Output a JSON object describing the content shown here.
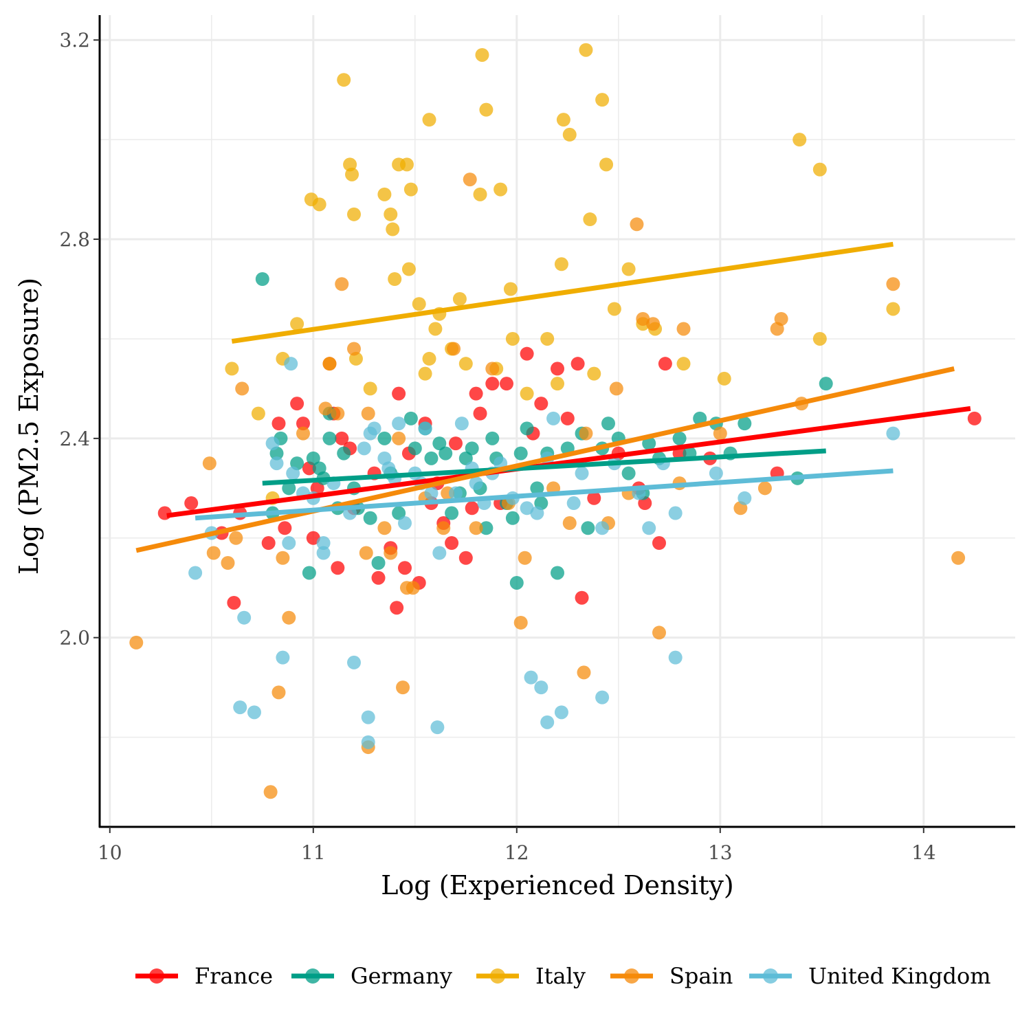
{
  "chart_data": {
    "type": "scatter",
    "title": "",
    "xlabel": "Log (Experienced Density)",
    "ylabel": "Log (PM2.5 Exposure)",
    "xlim": [
      9.95,
      14.45
    ],
    "ylim": [
      1.62,
      3.25
    ],
    "x_ticks": [
      10,
      11,
      12,
      13,
      14
    ],
    "y_ticks": [
      2.0,
      2.4,
      2.8,
      3.2
    ],
    "x_tick_labels": [
      "10",
      "11",
      "12",
      "13",
      "14"
    ],
    "y_tick_labels": [
      "2.0",
      "2.4",
      "2.8",
      "3.2"
    ],
    "grid": true,
    "legend_position": "bottom",
    "series": [
      {
        "name": "France",
        "color": "#ff0000",
        "fit": [
          [
            10.28,
            2.245
          ],
          [
            14.23,
            2.46
          ]
        ],
        "points": [
          [
            10.27,
            2.25
          ],
          [
            10.4,
            2.27
          ],
          [
            10.55,
            2.21
          ],
          [
            10.61,
            2.07
          ],
          [
            10.64,
            2.25
          ],
          [
            10.78,
            2.19
          ],
          [
            10.83,
            2.43
          ],
          [
            10.86,
            2.22
          ],
          [
            10.92,
            2.47
          ],
          [
            10.95,
            2.43
          ],
          [
            10.98,
            2.34
          ],
          [
            11.0,
            2.2
          ],
          [
            11.02,
            2.3
          ],
          [
            11.08,
            2.55
          ],
          [
            11.1,
            2.45
          ],
          [
            11.12,
            2.14
          ],
          [
            11.14,
            2.4
          ],
          [
            11.18,
            2.38
          ],
          [
            11.2,
            2.26
          ],
          [
            11.3,
            2.33
          ],
          [
            11.32,
            2.12
          ],
          [
            11.38,
            2.18
          ],
          [
            11.41,
            2.06
          ],
          [
            11.42,
            2.49
          ],
          [
            11.45,
            2.14
          ],
          [
            11.47,
            2.37
          ],
          [
            11.52,
            2.11
          ],
          [
            11.55,
            2.43
          ],
          [
            11.58,
            2.27
          ],
          [
            11.61,
            2.31
          ],
          [
            11.64,
            2.23
          ],
          [
            11.68,
            2.19
          ],
          [
            11.7,
            2.39
          ],
          [
            11.75,
            2.16
          ],
          [
            11.78,
            2.26
          ],
          [
            11.8,
            2.49
          ],
          [
            11.82,
            2.45
          ],
          [
            11.88,
            2.51
          ],
          [
            11.92,
            2.27
          ],
          [
            11.95,
            2.51
          ],
          [
            12.05,
            2.57
          ],
          [
            12.08,
            2.41
          ],
          [
            12.12,
            2.47
          ],
          [
            12.2,
            2.54
          ],
          [
            12.25,
            2.44
          ],
          [
            12.3,
            2.55
          ],
          [
            12.32,
            2.08
          ],
          [
            12.38,
            2.28
          ],
          [
            12.5,
            2.37
          ],
          [
            12.6,
            2.3
          ],
          [
            12.63,
            2.27
          ],
          [
            12.7,
            2.19
          ],
          [
            12.73,
            2.55
          ],
          [
            12.8,
            2.37
          ],
          [
            12.95,
            2.36
          ],
          [
            13.28,
            2.33
          ],
          [
            14.25,
            2.44
          ]
        ]
      },
      {
        "name": "Germany",
        "color": "#009e87",
        "fit": [
          [
            10.75,
            2.31
          ],
          [
            13.52,
            2.375
          ]
        ],
        "points": [
          [
            10.75,
            2.72
          ],
          [
            10.8,
            2.25
          ],
          [
            10.82,
            2.37
          ],
          [
            10.84,
            2.4
          ],
          [
            10.88,
            2.3
          ],
          [
            10.92,
            2.35
          ],
          [
            10.98,
            2.13
          ],
          [
            11.0,
            2.36
          ],
          [
            11.03,
            2.34
          ],
          [
            11.05,
            2.32
          ],
          [
            11.08,
            2.4
          ],
          [
            11.08,
            2.45
          ],
          [
            11.12,
            2.26
          ],
          [
            11.15,
            2.37
          ],
          [
            11.2,
            2.3
          ],
          [
            11.22,
            2.26
          ],
          [
            11.28,
            2.24
          ],
          [
            11.32,
            2.15
          ],
          [
            11.35,
            2.4
          ],
          [
            11.38,
            2.33
          ],
          [
            11.42,
            2.25
          ],
          [
            11.48,
            2.44
          ],
          [
            11.5,
            2.38
          ],
          [
            11.55,
            2.42
          ],
          [
            11.58,
            2.36
          ],
          [
            11.62,
            2.39
          ],
          [
            11.65,
            2.37
          ],
          [
            11.68,
            2.25
          ],
          [
            11.72,
            2.29
          ],
          [
            11.75,
            2.36
          ],
          [
            11.78,
            2.38
          ],
          [
            11.82,
            2.3
          ],
          [
            11.85,
            2.22
          ],
          [
            11.88,
            2.4
          ],
          [
            11.9,
            2.36
          ],
          [
            11.95,
            2.27
          ],
          [
            11.98,
            2.24
          ],
          [
            12.0,
            2.11
          ],
          [
            12.02,
            2.37
          ],
          [
            12.05,
            2.42
          ],
          [
            12.1,
            2.3
          ],
          [
            12.12,
            2.27
          ],
          [
            12.15,
            2.37
          ],
          [
            12.2,
            2.13
          ],
          [
            12.25,
            2.38
          ],
          [
            12.32,
            2.41
          ],
          [
            12.35,
            2.22
          ],
          [
            12.42,
            2.38
          ],
          [
            12.45,
            2.43
          ],
          [
            12.5,
            2.4
          ],
          [
            12.55,
            2.33
          ],
          [
            12.62,
            2.29
          ],
          [
            12.65,
            2.39
          ],
          [
            12.7,
            2.36
          ],
          [
            12.8,
            2.4
          ],
          [
            12.85,
            2.37
          ],
          [
            12.9,
            2.44
          ],
          [
            12.98,
            2.43
          ],
          [
            13.05,
            2.37
          ],
          [
            13.12,
            2.43
          ],
          [
            13.38,
            2.32
          ],
          [
            13.52,
            2.51
          ]
        ]
      },
      {
        "name": "Italy",
        "color": "#f0ad00",
        "fit": [
          [
            10.6,
            2.595
          ],
          [
            13.85,
            2.79
          ]
        ],
        "points": [
          [
            10.6,
            2.54
          ],
          [
            10.73,
            2.45
          ],
          [
            10.8,
            2.28
          ],
          [
            10.85,
            2.56
          ],
          [
            10.92,
            2.63
          ],
          [
            10.99,
            2.88
          ],
          [
            11.03,
            2.87
          ],
          [
            11.08,
            2.55
          ],
          [
            11.15,
            3.12
          ],
          [
            11.18,
            2.95
          ],
          [
            11.19,
            2.93
          ],
          [
            11.2,
            2.85
          ],
          [
            11.21,
            2.56
          ],
          [
            11.28,
            2.5
          ],
          [
            11.35,
            2.89
          ],
          [
            11.38,
            2.85
          ],
          [
            11.39,
            2.82
          ],
          [
            11.4,
            2.72
          ],
          [
            11.42,
            2.95
          ],
          [
            11.46,
            2.95
          ],
          [
            11.47,
            2.74
          ],
          [
            11.48,
            2.9
          ],
          [
            11.52,
            2.67
          ],
          [
            11.55,
            2.53
          ],
          [
            11.57,
            2.56
          ],
          [
            11.57,
            3.04
          ],
          [
            11.6,
            2.62
          ],
          [
            11.62,
            2.65
          ],
          [
            11.68,
            2.58
          ],
          [
            11.72,
            2.68
          ],
          [
            11.75,
            2.55
          ],
          [
            11.82,
            2.89
          ],
          [
            11.83,
            3.17
          ],
          [
            11.85,
            3.06
          ],
          [
            11.9,
            2.54
          ],
          [
            11.92,
            2.9
          ],
          [
            11.97,
            2.7
          ],
          [
            11.98,
            2.6
          ],
          [
            12.05,
            2.49
          ],
          [
            12.15,
            2.6
          ],
          [
            12.2,
            2.51
          ],
          [
            12.22,
            2.75
          ],
          [
            12.23,
            3.04
          ],
          [
            12.26,
            3.01
          ],
          [
            12.34,
            3.18
          ],
          [
            12.36,
            2.84
          ],
          [
            12.38,
            2.53
          ],
          [
            12.42,
            3.08
          ],
          [
            12.44,
            2.95
          ],
          [
            12.48,
            2.66
          ],
          [
            12.55,
            2.74
          ],
          [
            12.62,
            2.63
          ],
          [
            12.68,
            2.62
          ],
          [
            12.82,
            2.55
          ],
          [
            13.02,
            2.52
          ],
          [
            13.39,
            3.0
          ],
          [
            13.49,
            2.94
          ],
          [
            13.49,
            2.6
          ],
          [
            13.85,
            2.66
          ]
        ]
      },
      {
        "name": "Spain",
        "color": "#f58a0a",
        "fit": [
          [
            10.13,
            2.175
          ],
          [
            14.15,
            2.54
          ]
        ],
        "points": [
          [
            10.13,
            1.99
          ],
          [
            10.49,
            2.35
          ],
          [
            10.51,
            2.17
          ],
          [
            10.58,
            2.15
          ],
          [
            10.62,
            2.2
          ],
          [
            10.65,
            2.5
          ],
          [
            10.79,
            1.69
          ],
          [
            10.83,
            1.89
          ],
          [
            10.85,
            2.16
          ],
          [
            10.88,
            2.04
          ],
          [
            10.95,
            2.41
          ],
          [
            11.06,
            2.46
          ],
          [
            11.12,
            2.45
          ],
          [
            11.14,
            2.71
          ],
          [
            11.2,
            2.58
          ],
          [
            11.26,
            2.17
          ],
          [
            11.27,
            1.78
          ],
          [
            11.27,
            2.45
          ],
          [
            11.35,
            2.22
          ],
          [
            11.38,
            2.17
          ],
          [
            11.42,
            2.4
          ],
          [
            11.44,
            1.9
          ],
          [
            11.46,
            2.1
          ],
          [
            11.49,
            2.1
          ],
          [
            11.55,
            2.28
          ],
          [
            11.64,
            2.22
          ],
          [
            11.66,
            2.29
          ],
          [
            11.69,
            2.58
          ],
          [
            11.77,
            2.92
          ],
          [
            11.8,
            2.22
          ],
          [
            11.88,
            2.54
          ],
          [
            11.96,
            2.27
          ],
          [
            12.02,
            2.03
          ],
          [
            12.04,
            2.16
          ],
          [
            12.18,
            2.3
          ],
          [
            12.26,
            2.23
          ],
          [
            12.34,
            2.41
          ],
          [
            12.45,
            2.23
          ],
          [
            12.49,
            2.5
          ],
          [
            12.55,
            2.29
          ],
          [
            12.59,
            2.83
          ],
          [
            12.62,
            2.64
          ],
          [
            12.7,
            2.01
          ],
          [
            12.8,
            2.31
          ],
          [
            12.82,
            2.62
          ],
          [
            13.0,
            2.41
          ],
          [
            13.1,
            2.26
          ],
          [
            13.22,
            2.3
          ],
          [
            13.28,
            2.62
          ],
          [
            13.3,
            2.64
          ],
          [
            13.4,
            2.47
          ],
          [
            13.85,
            2.71
          ],
          [
            14.17,
            2.16
          ],
          [
            12.33,
            1.93
          ],
          [
            12.67,
            2.63
          ]
        ]
      },
      {
        "name": "United Kingdom",
        "color": "#5ebcd7",
        "fit": [
          [
            10.42,
            2.24
          ],
          [
            13.85,
            2.335
          ]
        ],
        "points": [
          [
            10.42,
            2.13
          ],
          [
            10.5,
            2.21
          ],
          [
            10.64,
            1.86
          ],
          [
            10.66,
            2.04
          ],
          [
            10.71,
            1.85
          ],
          [
            10.8,
            2.39
          ],
          [
            10.82,
            2.35
          ],
          [
            10.85,
            1.96
          ],
          [
            10.88,
            2.19
          ],
          [
            10.9,
            2.33
          ],
          [
            10.89,
            2.55
          ],
          [
            10.95,
            2.29
          ],
          [
            11.0,
            2.28
          ],
          [
            11.05,
            2.19
          ],
          [
            11.05,
            2.17
          ],
          [
            11.1,
            2.31
          ],
          [
            11.18,
            2.25
          ],
          [
            11.2,
            1.95
          ],
          [
            11.25,
            2.38
          ],
          [
            11.27,
            1.84
          ],
          [
            11.28,
            2.41
          ],
          [
            11.3,
            2.42
          ],
          [
            11.35,
            2.36
          ],
          [
            11.37,
            2.34
          ],
          [
            11.4,
            2.32
          ],
          [
            11.42,
            2.43
          ],
          [
            11.45,
            2.23
          ],
          [
            11.5,
            2.33
          ],
          [
            11.53,
            2.31
          ],
          [
            11.55,
            2.42
          ],
          [
            11.58,
            2.29
          ],
          [
            11.61,
            1.82
          ],
          [
            11.62,
            2.17
          ],
          [
            11.7,
            2.29
          ],
          [
            11.73,
            2.43
          ],
          [
            11.78,
            2.34
          ],
          [
            11.8,
            2.31
          ],
          [
            11.84,
            2.27
          ],
          [
            11.88,
            2.33
          ],
          [
            11.92,
            2.35
          ],
          [
            11.98,
            2.28
          ],
          [
            12.05,
            2.26
          ],
          [
            12.1,
            2.25
          ],
          [
            12.15,
            2.36
          ],
          [
            12.18,
            2.44
          ],
          [
            12.12,
            1.9
          ],
          [
            12.07,
            1.92
          ],
          [
            12.15,
            1.83
          ],
          [
            12.22,
            1.85
          ],
          [
            12.28,
            2.27
          ],
          [
            12.32,
            2.33
          ],
          [
            12.42,
            2.22
          ],
          [
            12.42,
            1.88
          ],
          [
            12.48,
            2.35
          ],
          [
            12.6,
            2.29
          ],
          [
            12.65,
            2.22
          ],
          [
            12.72,
            2.35
          ],
          [
            12.78,
            2.25
          ],
          [
            12.78,
            1.96
          ],
          [
            12.98,
            2.33
          ],
          [
            13.12,
            2.28
          ],
          [
            13.85,
            2.41
          ],
          [
            11.27,
            1.79
          ]
        ]
      }
    ]
  }
}
